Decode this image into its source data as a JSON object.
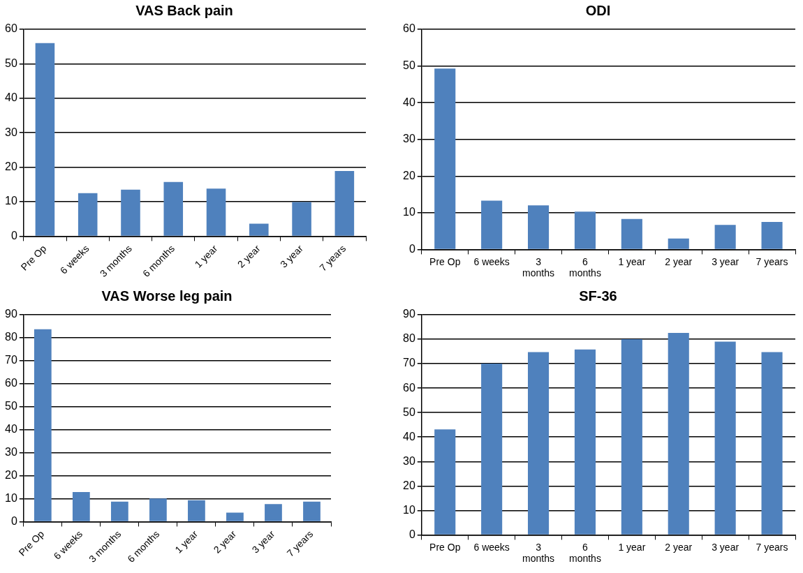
{
  "chart_data": [
    {
      "type": "bar",
      "title": "VAS Back pain",
      "categories": [
        "Pre Op",
        "6 weeks",
        "3 months",
        "6 months",
        "1 year",
        "2 year",
        "3 year",
        "7 years"
      ],
      "values": [
        56,
        12.5,
        13.5,
        15.7,
        13.8,
        3.6,
        9.9,
        18.9
      ],
      "color": "#4f81bd",
      "ylim": [
        0,
        60
      ],
      "yticks": [
        0,
        10,
        20,
        30,
        40,
        50,
        60
      ],
      "grid": "y"
    },
    {
      "type": "bar",
      "title": "ODI",
      "categories": [
        "Pre Op",
        "6 weeks",
        "3 months",
        "6 months",
        "1 year",
        "2 year",
        "3 year",
        "7 years"
      ],
      "values": [
        49.3,
        13.3,
        12,
        10.3,
        8.3,
        3,
        6.7,
        7.5
      ],
      "color": "#4f81bd",
      "ylim": [
        0,
        60
      ],
      "yticks": [
        0,
        10,
        20,
        30,
        40,
        50,
        60
      ],
      "grid": "y"
    },
    {
      "type": "bar",
      "title": "VAS Worse leg pain",
      "categories": [
        "Pre Op",
        "6 weeks",
        "3 months",
        "6 months",
        "1 year",
        "2 year",
        "3 year",
        "7 years"
      ],
      "values": [
        83.7,
        12.9,
        8.7,
        10.1,
        9.3,
        3.9,
        7.6,
        8.7
      ],
      "color": "#4f81bd",
      "ylim": [
        0,
        90
      ],
      "yticks": [
        0,
        10,
        20,
        30,
        40,
        50,
        60,
        70,
        80,
        90
      ],
      "grid": "y"
    },
    {
      "type": "bar",
      "title": "SF-36",
      "categories": [
        "Pre Op",
        "6 weeks",
        "3 months",
        "6 months",
        "1 year",
        "2 year",
        "3 year",
        "7 years"
      ],
      "values": [
        43.1,
        70,
        74.7,
        75.8,
        80,
        82.6,
        79,
        74.7
      ],
      "color": "#4f81bd",
      "ylim": [
        0,
        90
      ],
      "yticks": [
        0,
        10,
        20,
        30,
        40,
        50,
        60,
        70,
        80,
        90
      ],
      "grid": "y"
    }
  ]
}
